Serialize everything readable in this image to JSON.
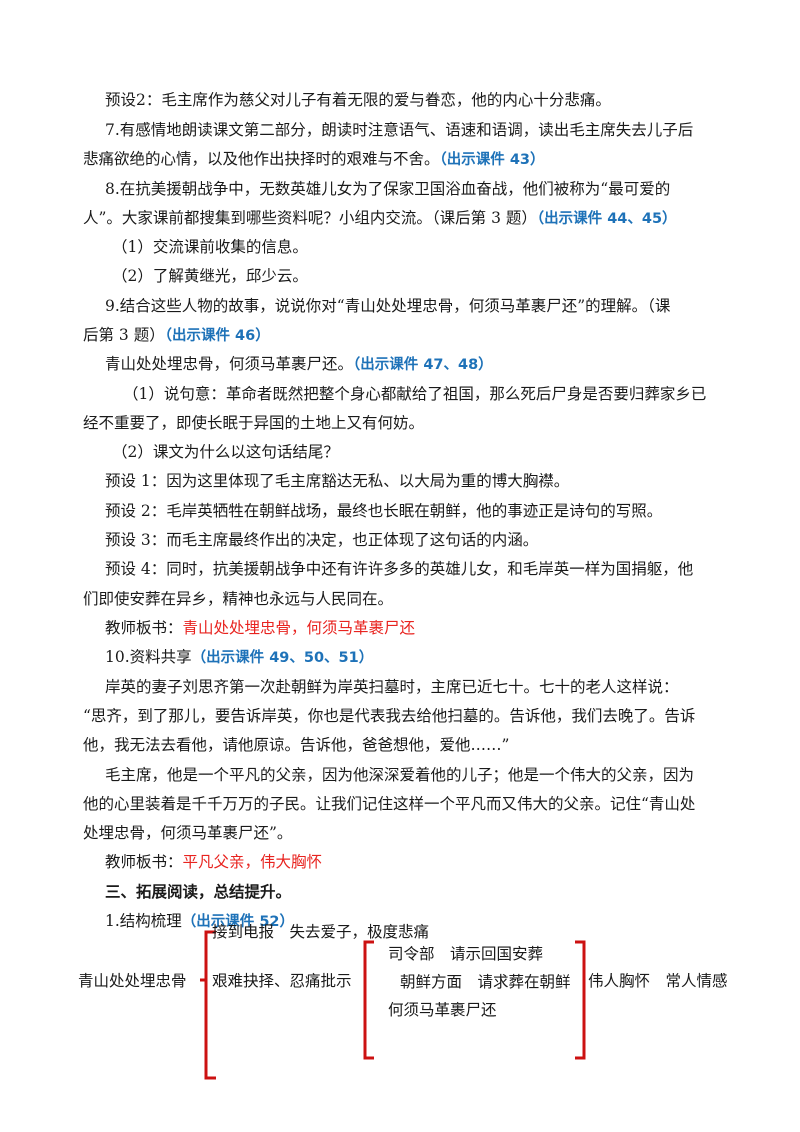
{
  "lines": {
    "p1": "预设2：毛主席作为慈父对儿子有着无限的爱与眷恋，他的内心十分悲痛。",
    "p2a": "7.有感情地朗读课文第二部分，朗读时注意语气、语速和语调，读出毛主席失去儿子后",
    "p2b": "悲痛欲绝的心情，以及他作出抉择时的艰难与不舍。",
    "p2ref": "（出示课件 43）",
    "p3a": "8.在抗美援朝战争中，无数英雄儿女为了保家卫国浴血奋战，他们被称为“最可爱的",
    "p3b": "人”。大家课前都搜集到哪些资料呢？小组内交流。（课后第 3 题）",
    "p3ref": "（出示课件 44、45）",
    "p4": "（1）交流课前收集的信息。",
    "p5": "（2）了解黄继光，邱少云。",
    "p6a": "9.结合这些人物的故事，说说你对“青山处处埋忠骨，何须马革裹尸还”的理解。（课",
    "p6b": "后第 3 题）",
    "p6ref": "（出示课件 46）",
    "p7": "青山处处埋忠骨，何须马革裹尸还。",
    "p7ref": "（出示课件 47、48）",
    "p8a": "（1）说句意：革命者既然把整个身心都献给了祖国，那么死后尸身是否要归葬家乡已",
    "p8b": "经不重要了，即使长眠于异国的土地上又有何妨。",
    "p9": "（2）课文为什么以这句话结尾？",
    "p10": "预设 1：因为这里体现了毛主席豁达无私、以大局为重的博大胸襟。",
    "p11": "预设 2：毛岸英牺牲在朝鲜战场，最终也长眠在朝鲜，他的事迹正是诗句的写照。",
    "p12": "预设 3：而毛主席最终作出的决定，也正体现了这句话的内涵。",
    "p13a": "预设 4：同时，抗美援朝战争中还有许许多多的英雄儿女，和毛岸英一样为国捐躯，他",
    "p13b": "们即使安葬在异乡，精神也永远与人民同在。",
    "p14label": "教师板书：",
    "p14red": "青山处处埋忠骨，何须马革裹尸还",
    "p15": "10.资料共享",
    "p15ref": "（出示课件 49、50、51）",
    "p16a": "岸英的妻子刘思齐第一次赴朝鲜为岸英扫墓时，主席已近七十。七十的老人这样说：",
    "p16b": "“思齐，到了那儿，要告诉岸英，你也是代表我去给他扫墓的。告诉他，我们去晚了。告诉",
    "p16c": "他，我无法去看他，请他原谅。告诉他，爸爸想他，爱他……”",
    "p17a": "毛主席，他是一个平凡的父亲，因为他深深爱着他的儿子；他是一个伟大的父亲，因为",
    "p17b": "他的心里装着是千千万万的子民。让我们记住这样一个平凡而又伟大的父亲。记住“青山处",
    "p17c": "处埋忠骨，何须马革裹尸还”。",
    "p18label": "教师板书：",
    "p18red": "平凡父亲，伟大胸怀",
    "p19": "三、拓展阅读，总结提升。",
    "p20": "1.结构梳理",
    "p20ref": "（出示课件 52）"
  },
  "diagram": {
    "root": "青山处处埋忠骨",
    "branch1": "接到电报　失去爱子，极度悲痛",
    "branch2": "艰难抉择、忍痛批示",
    "sub1": "司令部　请示回国安葬",
    "sub2": "朝鲜方面　请求葬在朝鲜",
    "sub3": "何须马革裹尸还",
    "result": "伟人胸怀　常人情感",
    "bracket_color": "#cc1111"
  }
}
